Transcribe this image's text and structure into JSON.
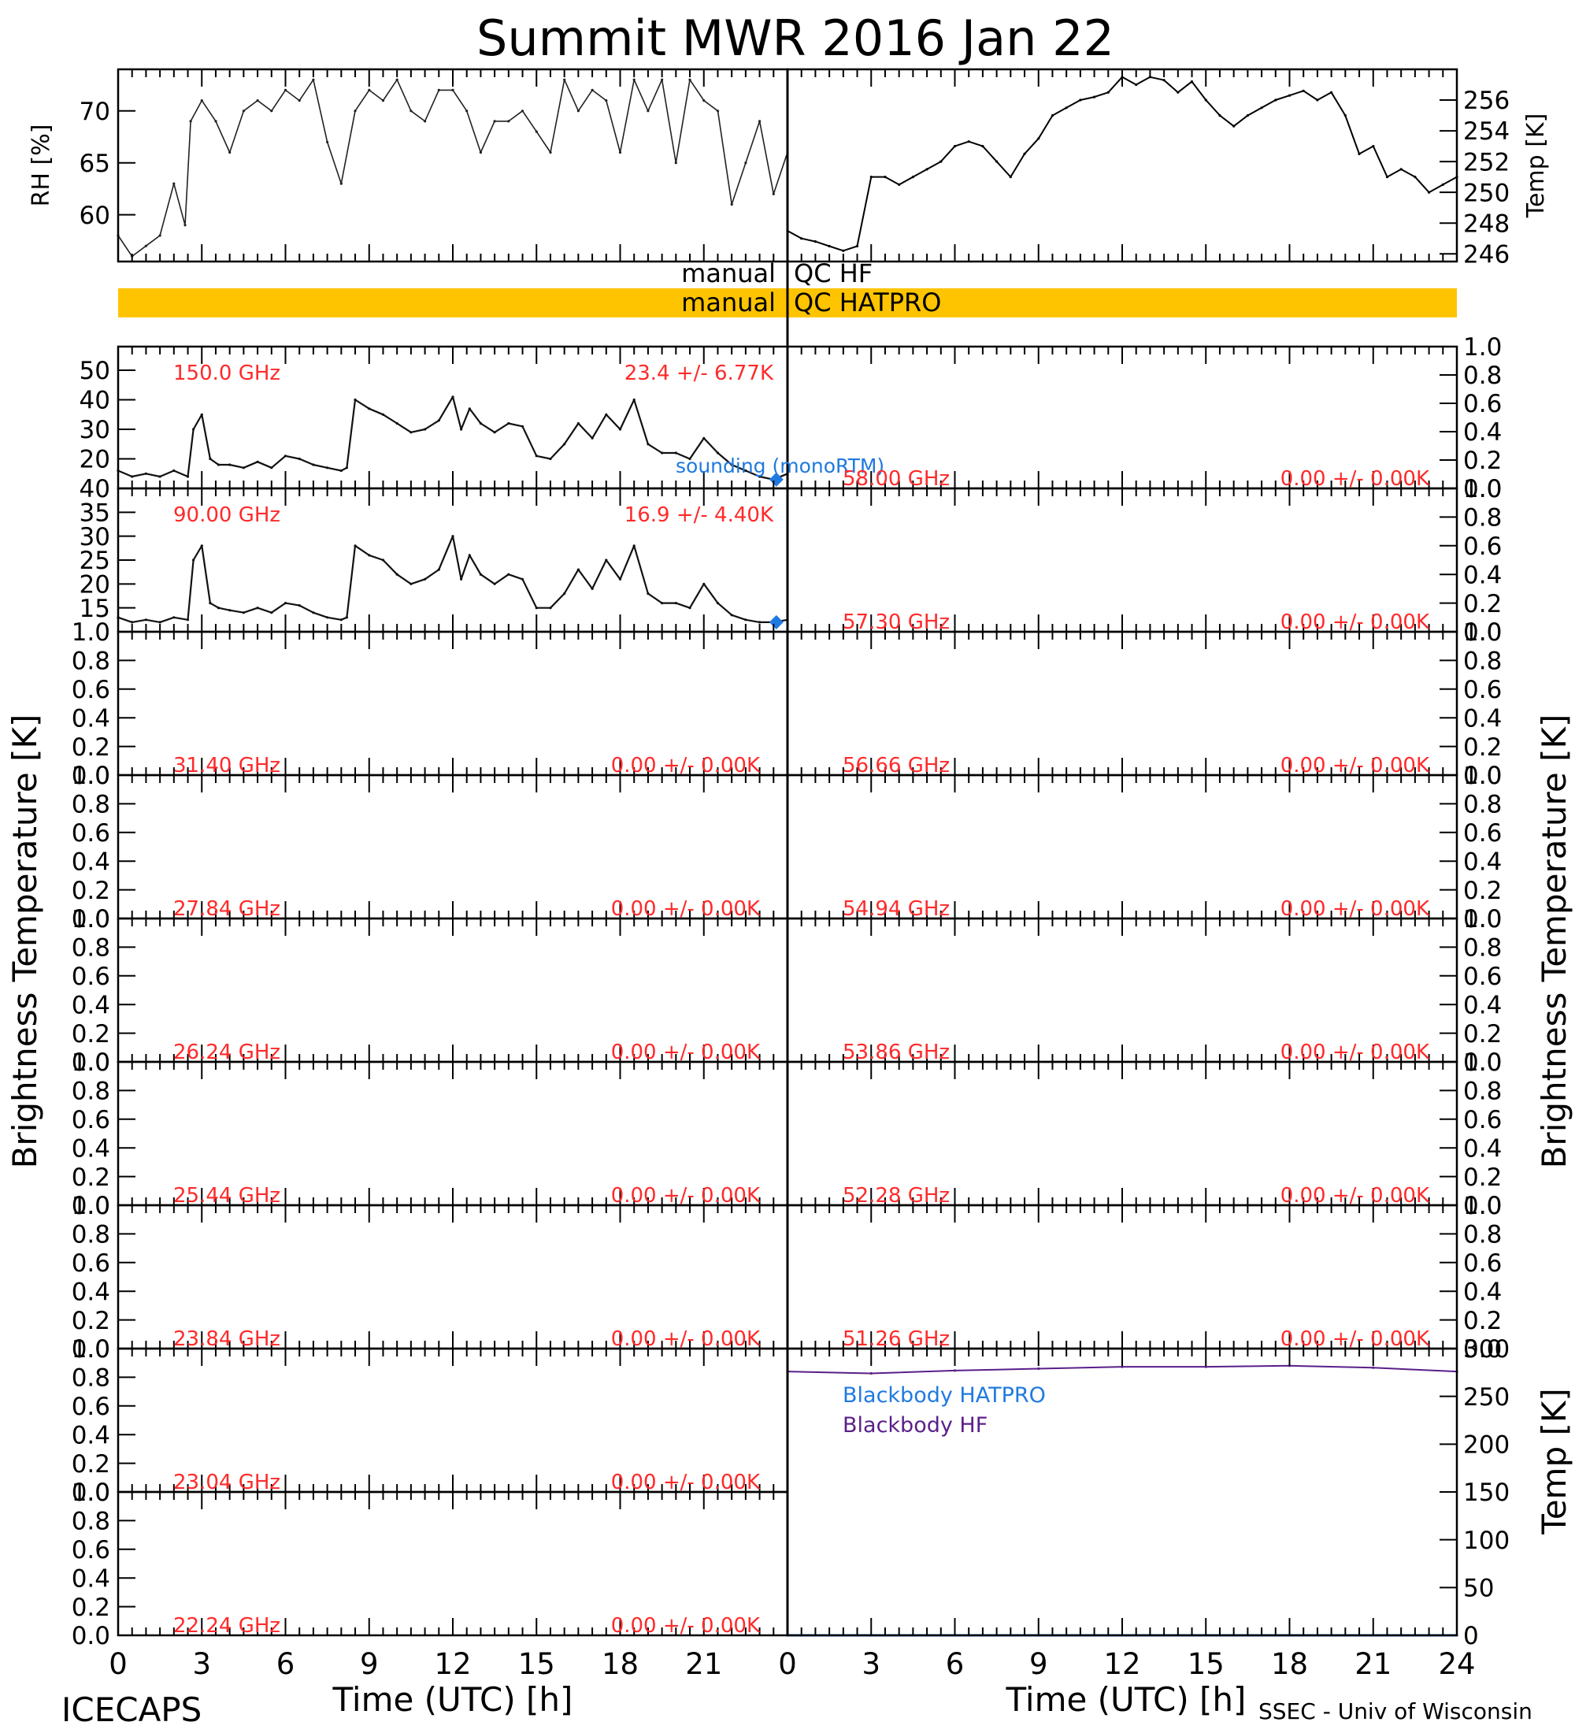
{
  "title": "Summit MWR 2016 Jan 22",
  "footer": {
    "left": "ICECAPS",
    "right": "SSEC - Univ of Wisconsin"
  },
  "xaxis": {
    "label": "Time (UTC) [h]",
    "ticks": [
      "0",
      "3",
      "6",
      "9",
      "12",
      "15",
      "18",
      "21"
    ],
    "ticks_right": [
      "0",
      "3",
      "6",
      "9",
      "12",
      "15",
      "18",
      "21",
      "24"
    ],
    "range": [
      0,
      24
    ]
  },
  "side_labels": {
    "left": "Brightness Temperature [K]",
    "right": "Brightness Temperature [K]",
    "bb_right": "Temp [K]"
  },
  "colors": {
    "qc_bar": "#ffc400",
    "annotation": "#ff2a2a",
    "sounding": "#1f7ae0",
    "bb_hatpro": "#1f7ae0",
    "bb_hf": "#5a1f8a"
  },
  "qc": {
    "hf_label": "manual  QC HF",
    "hf_left": "manual",
    "hf_right": "QC HF",
    "hatpro_left": "manual",
    "hatpro_right": "QC HATPRO",
    "hatpro_flagged": true
  },
  "rh_panel": {
    "ylabel": "RH [%]",
    "ylim": [
      55.5,
      74
    ],
    "ticks": [
      "60",
      "65",
      "70"
    ],
    "chart_data": {
      "type": "line",
      "x": [
        0,
        0.5,
        1,
        1.5,
        2,
        2.4,
        2.6,
        3,
        3.5,
        4,
        4.5,
        5,
        5.5,
        6,
        6.5,
        7,
        7.5,
        8,
        8.5,
        9,
        9.5,
        10,
        10.5,
        11,
        11.5,
        12,
        12.5,
        13,
        13.5,
        14,
        14.5,
        15,
        15.5,
        16,
        16.5,
        17,
        17.5,
        18,
        18.5,
        19,
        19.5,
        20,
        20.5,
        21,
        21.5,
        22,
        22.5,
        23,
        23.5,
        24
      ],
      "y": [
        58,
        56,
        57,
        58,
        63,
        59,
        69,
        71,
        69,
        66,
        70,
        71,
        70,
        72,
        71,
        73,
        67,
        63,
        70,
        72,
        71,
        73,
        70,
        69,
        72,
        72,
        70,
        66,
        69,
        69,
        70,
        68,
        66,
        73,
        70,
        72,
        71,
        66,
        73,
        70,
        73,
        65,
        73,
        71,
        70,
        61,
        65,
        69,
        62,
        66
      ]
    }
  },
  "temp_panel": {
    "ylabel": "Temp [K]",
    "ylim": [
      245.5,
      258
    ],
    "ticks": [
      "246",
      "248",
      "250",
      "252",
      "254",
      "256"
    ],
    "chart_data": {
      "type": "line",
      "x": [
        0,
        0.5,
        1,
        1.5,
        2,
        2.5,
        3,
        3.5,
        4,
        4.5,
        5,
        5.5,
        6,
        6.5,
        7,
        7.5,
        8,
        8.5,
        9,
        9.5,
        10,
        10.5,
        11,
        11.5,
        12,
        12.5,
        13,
        13.5,
        14,
        14.5,
        15,
        15.5,
        16,
        16.5,
        17,
        17.5,
        18,
        18.5,
        19,
        19.5,
        20,
        20.5,
        21,
        21.5,
        22,
        22.5,
        23,
        23.5,
        24
      ],
      "y": [
        247.5,
        247,
        246.8,
        246.5,
        246.2,
        246.5,
        251,
        251,
        250.5,
        251,
        251.5,
        252,
        253,
        253.3,
        253,
        252,
        251,
        252.5,
        253.5,
        255,
        255.5,
        256,
        256.2,
        256.5,
        257.5,
        257,
        257.5,
        257.3,
        256.5,
        257.2,
        256,
        255,
        254.3,
        255,
        255.5,
        256,
        256.3,
        256.6,
        256,
        256.5,
        255,
        252.5,
        253,
        251,
        251.5,
        251,
        250,
        250.5,
        251
      ]
    }
  },
  "left_panels": [
    {
      "freq": "150.0 GHz",
      "stats": "23.4 +/-  6.77K",
      "ylim": [
        10,
        58
      ],
      "ticks": [
        "20",
        "30",
        "40",
        "50"
      ],
      "has_data": true,
      "chart_data": {
        "type": "line",
        "x": [
          0,
          0.5,
          1,
          1.5,
          2,
          2.5,
          2.7,
          3,
          3.3,
          3.6,
          4,
          4.5,
          5,
          5.5,
          6,
          6.5,
          7,
          7.5,
          8,
          8.2,
          8.5,
          9,
          9.5,
          10,
          10.5,
          11,
          11.5,
          12,
          12.3,
          12.6,
          13,
          13.5,
          14,
          14.5,
          15,
          15.5,
          16,
          16.5,
          17,
          17.5,
          18,
          18.5,
          19,
          19.5,
          20,
          20.5,
          21,
          21.5,
          22,
          22.5,
          23,
          23.5,
          24
        ],
        "y": [
          16,
          14,
          15,
          14,
          16,
          14,
          30,
          35,
          20,
          18,
          18,
          17,
          19,
          17,
          21,
          20,
          18,
          17,
          16,
          17,
          40,
          37,
          35,
          32,
          29,
          30,
          33,
          41,
          30,
          37,
          32,
          29,
          32,
          31,
          21,
          20,
          25,
          32,
          27,
          35,
          30,
          40,
          25,
          22,
          22,
          20,
          27,
          22,
          18,
          16,
          14,
          13,
          15
        ]
      }
    },
    {
      "freq": "90.00 GHz",
      "stats": "16.9 +/-  4.40K",
      "ylim": [
        10,
        40
      ],
      "ticks": [
        "15",
        "20",
        "25",
        "30",
        "35",
        "40"
      ],
      "has_data": true,
      "chart_data": {
        "type": "line",
        "x": [
          0,
          0.5,
          1,
          1.5,
          2,
          2.5,
          2.7,
          3,
          3.3,
          3.6,
          4,
          4.5,
          5,
          5.5,
          6,
          6.5,
          7,
          7.5,
          8,
          8.2,
          8.5,
          9,
          9.5,
          10,
          10.5,
          11,
          11.5,
          12,
          12.3,
          12.6,
          13,
          13.5,
          14,
          14.5,
          15,
          15.5,
          16,
          16.5,
          17,
          17.5,
          18,
          18.5,
          19,
          19.5,
          20,
          20.5,
          21,
          21.5,
          22,
          22.5,
          23,
          23.5,
          24
        ],
        "y": [
          13,
          12,
          12.5,
          12,
          13,
          12.5,
          25,
          28,
          16,
          15,
          14.5,
          14,
          15,
          14,
          16,
          15.5,
          14,
          13,
          12.5,
          13,
          28,
          26,
          25,
          22,
          20,
          21,
          23,
          30,
          21,
          26,
          22,
          20,
          22,
          21,
          15,
          15,
          18,
          23,
          19,
          25,
          21,
          28,
          18,
          16,
          16,
          15,
          20,
          16,
          13.5,
          12.5,
          12,
          12,
          12.5
        ]
      }
    },
    {
      "freq": "31.40 GHz",
      "stats": "0.00 +/-  0.00K",
      "ylim": [
        0,
        1
      ],
      "ticks": [
        "0.0",
        "0.2",
        "0.4",
        "0.6",
        "0.8",
        "1.0"
      ],
      "has_data": false
    },
    {
      "freq": "27.84 GHz",
      "stats": "0.00 +/-  0.00K",
      "ylim": [
        0,
        1
      ],
      "ticks": [
        "0.0",
        "0.2",
        "0.4",
        "0.6",
        "0.8",
        "1.0"
      ],
      "has_data": false
    },
    {
      "freq": "26.24 GHz",
      "stats": "0.00 +/-  0.00K",
      "ylim": [
        0,
        1
      ],
      "ticks": [
        "0.0",
        "0.2",
        "0.4",
        "0.6",
        "0.8",
        "1.0"
      ],
      "has_data": false
    },
    {
      "freq": "25.44 GHz",
      "stats": "0.00 +/-  0.00K",
      "ylim": [
        0,
        1
      ],
      "ticks": [
        "0.0",
        "0.2",
        "0.4",
        "0.6",
        "0.8",
        "1.0"
      ],
      "has_data": false
    },
    {
      "freq": "23.84 GHz",
      "stats": "0.00 +/-  0.00K",
      "ylim": [
        0,
        1
      ],
      "ticks": [
        "0.0",
        "0.2",
        "0.4",
        "0.6",
        "0.8",
        "1.0"
      ],
      "has_data": false
    },
    {
      "freq": "23.04 GHz",
      "stats": "0.00 +/-  0.00K",
      "ylim": [
        0,
        1
      ],
      "ticks": [
        "0.0",
        "0.2",
        "0.4",
        "0.6",
        "0.8",
        "1.0"
      ],
      "has_data": false
    },
    {
      "freq": "22.24 GHz",
      "stats": "0.00 +/-  0.00K",
      "ylim": [
        0,
        1
      ],
      "ticks": [
        "0.0",
        "0.2",
        "0.4",
        "0.6",
        "0.8",
        "1.0"
      ],
      "has_data": false
    }
  ],
  "right_panels": [
    {
      "freq": "58.00 GHz",
      "stats": "0.00 +/-  0.00K"
    },
    {
      "freq": "57.30 GHz",
      "stats": "0.00 +/-  0.00K"
    },
    {
      "freq": "56.66 GHz",
      "stats": "0.00 +/-  0.00K"
    },
    {
      "freq": "54.94 GHz",
      "stats": "0.00 +/-  0.00K"
    },
    {
      "freq": "53.86 GHz",
      "stats": "0.00 +/-  0.00K"
    },
    {
      "freq": "52.28 GHz",
      "stats": "0.00 +/-  0.00K"
    },
    {
      "freq": "51.26 GHz",
      "stats": "0.00 +/-  0.00K"
    }
  ],
  "right_ticks": [
    "0.0",
    "0.2",
    "0.4",
    "0.6",
    "0.8",
    "1.0"
  ],
  "sounding": {
    "label": "sounding (monoRTM)",
    "points": [
      {
        "x": 23.6,
        "y150": 13,
        "y90": 12
      }
    ]
  },
  "blackbody": {
    "ylim": [
      0,
      300
    ],
    "ticks": [
      "0",
      "50",
      "100",
      "150",
      "200",
      "250",
      "300"
    ],
    "label_hatpro": "Blackbody HATPRO",
    "label_hf": "Blackbody HF",
    "chart_data": {
      "type": "line",
      "series": [
        {
          "name": "Blackbody HF",
          "x": [
            0,
            3,
            6,
            9,
            12,
            15,
            18,
            21,
            24
          ],
          "y": [
            276,
            274,
            277,
            279,
            281,
            281,
            282,
            280,
            276
          ]
        },
        {
          "name": "Blackbody HATPRO",
          "x": [
            0,
            24
          ],
          "y": [
            0,
            0
          ]
        }
      ]
    }
  }
}
